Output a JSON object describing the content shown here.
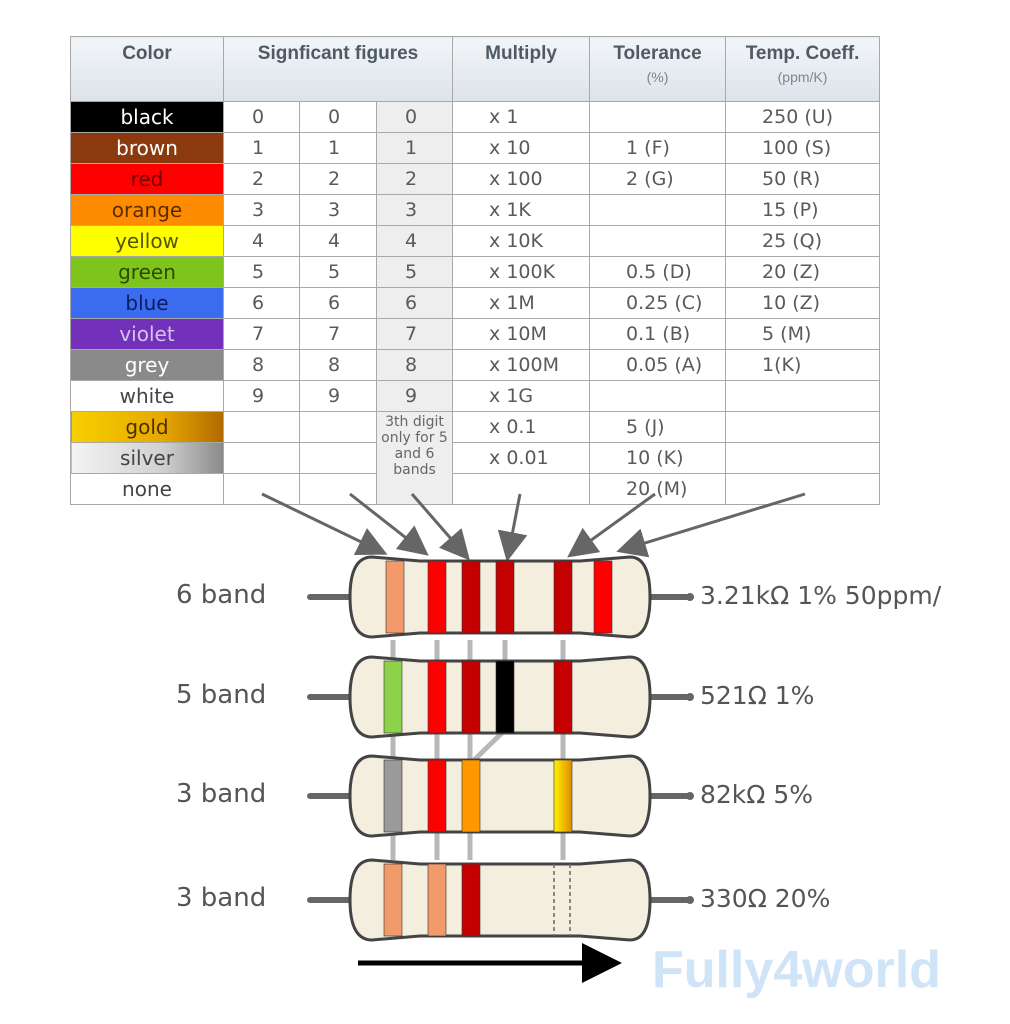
{
  "table": {
    "headers": {
      "color": "Color",
      "significant": "Signficant figures",
      "multiply": "Multiply",
      "tolerance": "Tolerance",
      "tolerance_unit": "(%)",
      "temp": "Temp. Coeff.",
      "temp_unit": "(ppm/K)"
    },
    "rows": [
      {
        "name": "black",
        "bg": "#000000",
        "fg": "#ffffff",
        "d1": "0",
        "d2": "0",
        "d3": "0",
        "mult": "x 1",
        "tol": "",
        "temp": "250 (U)"
      },
      {
        "name": "brown",
        "bg": "#8b3a0f",
        "fg": "#ffffff",
        "d1": "1",
        "d2": "1",
        "d3": "1",
        "mult": "x 10",
        "tol": "1 (F)",
        "temp": "100 (S)"
      },
      {
        "name": "red",
        "bg": "#ff0000",
        "fg": "#7a0000",
        "d1": "2",
        "d2": "2",
        "d3": "2",
        "mult": "x 100",
        "tol": "2 (G)",
        "temp": "50 (R)"
      },
      {
        "name": "orange",
        "bg": "#ff8c00",
        "fg": "#5a2a00",
        "d1": "3",
        "d2": "3",
        "d3": "3",
        "mult": "x 1K",
        "tol": "",
        "temp": "15 (P)"
      },
      {
        "name": "yellow",
        "bg": "#ffff00",
        "fg": "#555500",
        "d1": "4",
        "d2": "4",
        "d3": "4",
        "mult": "x 10K",
        "tol": "",
        "temp": "25 (Q)"
      },
      {
        "name": "green",
        "bg": "#7fc41c",
        "fg": "#2c4a00",
        "d1": "5",
        "d2": "5",
        "d3": "5",
        "mult": "x 100K",
        "tol": "0.5 (D)",
        "temp": "20 (Z)"
      },
      {
        "name": "blue",
        "bg": "#3b6cf0",
        "fg": "#0a1d60",
        "d1": "6",
        "d2": "6",
        "d3": "6",
        "mult": "x 1M",
        "tol": "0.25 (C)",
        "temp": "10 (Z)"
      },
      {
        "name": "violet",
        "bg": "#7330b8",
        "fg": "#d6c2ee",
        "d1": "7",
        "d2": "7",
        "d3": "7",
        "mult": "x 10M",
        "tol": "0.1 (B)",
        "temp": "5 (M)"
      },
      {
        "name": "grey",
        "bg": "#8a8a8a",
        "fg": "#ffffff",
        "d1": "8",
        "d2": "8",
        "d3": "8",
        "mult": "x 100M",
        "tol": "0.05 (A)",
        "temp": "1(K)"
      },
      {
        "name": "white",
        "bg": "#ffffff",
        "fg": "#444444",
        "d1": "9",
        "d2": "9",
        "d3": "9",
        "mult": "x 1G",
        "tol": "",
        "temp": ""
      },
      {
        "name": "gold",
        "bg": "linear-gradient(90deg,#f7d000,#e6a800 60%,#b06a00)",
        "fg": "#4a3000",
        "d1": "",
        "d2": "",
        "d3": "",
        "mult": "x 0.1",
        "tol": "5 (J)",
        "temp": ""
      },
      {
        "name": "silver",
        "bg": "linear-gradient(90deg,#f4f4f4,#d0d0d0 60%,#8a8a8a)",
        "fg": "#444444",
        "d1": "",
        "d2": "",
        "d3": "",
        "mult": "x 0.01",
        "tol": "10 (K)",
        "temp": ""
      },
      {
        "name": "none",
        "bg": "#ffffff",
        "fg": "#444444",
        "d1": "",
        "d2": "",
        "d3": "",
        "mult": "",
        "tol": "20 (M)",
        "temp": ""
      }
    ],
    "note": "3th digit only for 5 and 6 bands"
  },
  "resistors": [
    {
      "label": "6 band",
      "value": "3.21kΩ 1% 50ppm/"
    },
    {
      "label": "5 band",
      "value": "521Ω 1%"
    },
    {
      "label": "3 band",
      "value": "82kΩ 5%"
    },
    {
      "label": "3 band",
      "value": "330Ω 20%"
    }
  ],
  "colors": {
    "body": "#f4eedf",
    "body_stroke": "#444444",
    "lead": "#666666",
    "connector": "#b8b8b8",
    "arrow": "#666666",
    "orange": "#f39a6a",
    "red": "#ff0000",
    "dark_red": "#c40000",
    "black": "#000000",
    "green": "#8ed14a",
    "grey": "#9a9a9a",
    "orange_band": "#ff9800",
    "gold": "#f4c000"
  },
  "watermark": "Fully4world"
}
